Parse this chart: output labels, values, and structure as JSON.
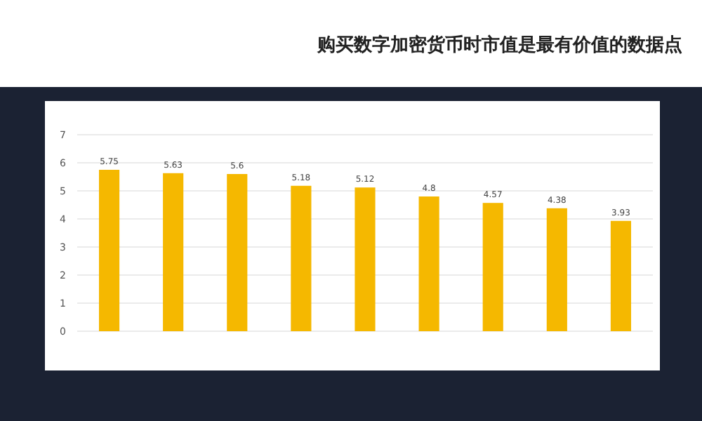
{
  "chart_data": {
    "type": "bar",
    "title": "购买数字加密货币时市值是最有价值的数据点",
    "categories": [
      null,
      null,
      null,
      null,
      null,
      null,
      null,
      null,
      null
    ],
    "values": [
      5.75,
      5.63,
      5.6,
      5.18,
      5.12,
      4.8,
      4.57,
      4.38,
      3.93
    ],
    "color": "#f5b800",
    "ylim": [
      0,
      7
    ],
    "yticks": [
      0,
      1,
      2,
      3,
      4,
      5,
      6,
      7
    ],
    "grid": "y",
    "data_labels": true
  }
}
